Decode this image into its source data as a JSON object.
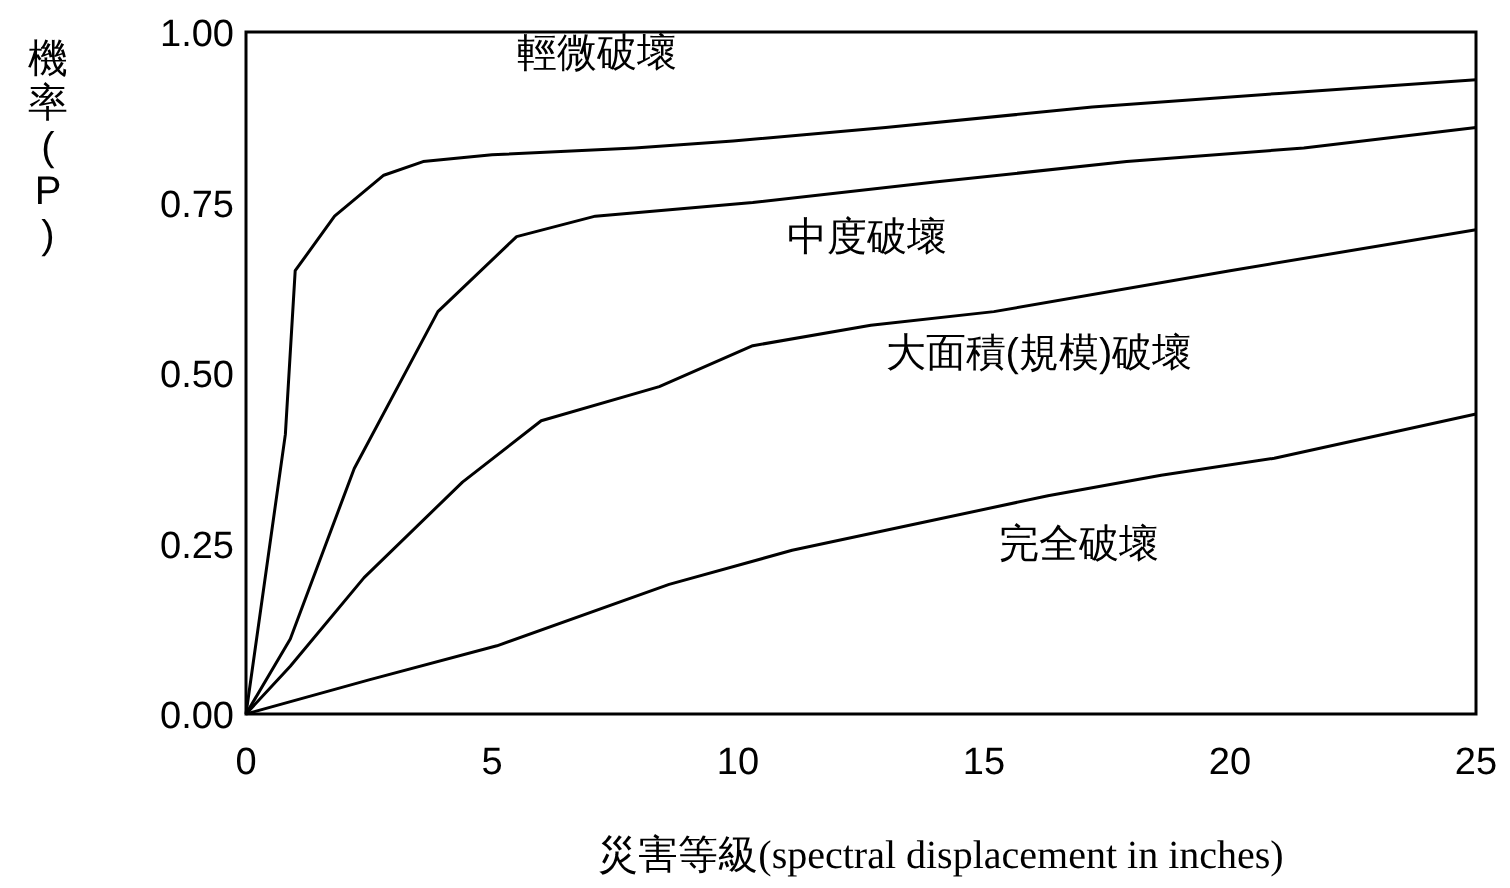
{
  "chart_data": {
    "type": "line",
    "xlabel": "災害等級(spectral displacement in inches)",
    "ylabel": "機率(P)",
    "xlim": [
      0,
      25
    ],
    "ylim": [
      0,
      1
    ],
    "xticks": [
      0,
      5,
      10,
      15,
      20,
      25
    ],
    "yticks": [
      {
        "value": 0,
        "label": "0.00"
      },
      {
        "value": 0.25,
        "label": "0.25"
      },
      {
        "value": 0.5,
        "label": "0.50"
      },
      {
        "value": 0.75,
        "label": "0.75"
      },
      {
        "value": 1,
        "label": "1.00"
      }
    ],
    "grid": false,
    "series": [
      {
        "name": "輕微破壞",
        "color": "#000000",
        "x": [
          0,
          0.8,
          1.0,
          1.8,
          2.8,
          3.6,
          5,
          7.9,
          9.9,
          13,
          17.2,
          21,
          25
        ],
        "values": [
          0,
          0.41,
          0.65,
          0.73,
          0.79,
          0.81,
          0.82,
          0.83,
          0.84,
          0.86,
          0.89,
          0.91,
          0.93
        ]
      },
      {
        "name": "中度破壞",
        "color": "#000000",
        "x": [
          0,
          0.9,
          2.2,
          3.9,
          5.5,
          7.1,
          10.3,
          14,
          17.9,
          21.5,
          25
        ],
        "values": [
          0,
          0.11,
          0.36,
          0.59,
          0.7,
          0.73,
          0.75,
          0.78,
          0.81,
          0.83,
          0.86
        ]
      },
      {
        "name": "大面積(規模)破壞",
        "color": "#000000",
        "x": [
          0,
          0.9,
          2.4,
          4.4,
          6,
          8.4,
          10.3,
          12.7,
          15.2,
          20,
          25
        ],
        "values": [
          0,
          0.07,
          0.2,
          0.34,
          0.43,
          0.48,
          0.54,
          0.57,
          0.59,
          0.65,
          0.71
        ]
      },
      {
        "name": "完全破壞",
        "color": "#000000",
        "x": [
          0,
          2.5,
          5.1,
          8.6,
          11.1,
          13.7,
          16.3,
          18.6,
          20.9,
          25
        ],
        "values": [
          0,
          0.05,
          0.1,
          0.19,
          0.24,
          0.28,
          0.32,
          0.35,
          0.375,
          0.44
        ]
      }
    ]
  }
}
